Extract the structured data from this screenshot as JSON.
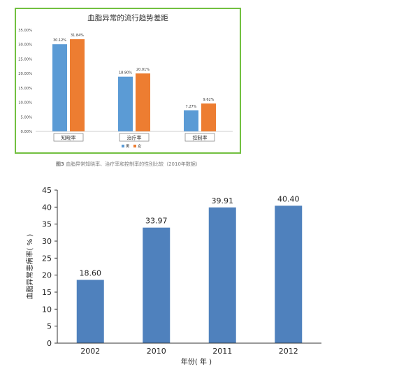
{
  "chart_data": [
    {
      "type": "bar",
      "title": "血脂异常的流行趋势差距",
      "categories": [
        "知晓率",
        "治疗率",
        "控制率"
      ],
      "series": [
        {
          "name": "男",
          "color": "#5b9bd5",
          "values": [
            30.12,
            18.9,
            7.27
          ],
          "labels": [
            "30.12%",
            "18.90%",
            "7.27%"
          ]
        },
        {
          "name": "女",
          "color": "#ed7d31",
          "values": [
            31.84,
            20.01,
            9.62
          ],
          "labels": [
            "31.84%",
            "20.01%",
            "9.62%"
          ]
        }
      ],
      "ylim": [
        0,
        35
      ],
      "yticks": [
        0,
        5,
        10,
        15,
        20,
        25,
        30,
        35
      ],
      "ytick_labels": [
        "0.00%",
        "5.00%",
        "10.00%",
        "15.00%",
        "20.00%",
        "25.00%",
        "30.00%",
        "35.00%"
      ],
      "legend_position": "bottom-center",
      "grid": false,
      "frame_color": "#72c040"
    },
    {
      "type": "bar",
      "categories": [
        "2002",
        "2010",
        "2011",
        "2012"
      ],
      "values": [
        18.6,
        33.97,
        39.91,
        40.4
      ],
      "value_labels": [
        "18.60",
        "33.97",
        "39.91",
        "40.40"
      ],
      "color": "#4f81bd",
      "xlabel": "年份( 年 )",
      "ylabel": "血脂异常患病率( % )",
      "ylim": [
        0,
        45
      ],
      "yticks": [
        0,
        5,
        10,
        15,
        20,
        25,
        30,
        35,
        40,
        45
      ],
      "grid": false
    }
  ],
  "caption": {
    "prefix": "图3",
    "text": " 血脂异常知晓率、治疗率和控制率的性别比较（2010年数据）"
  }
}
